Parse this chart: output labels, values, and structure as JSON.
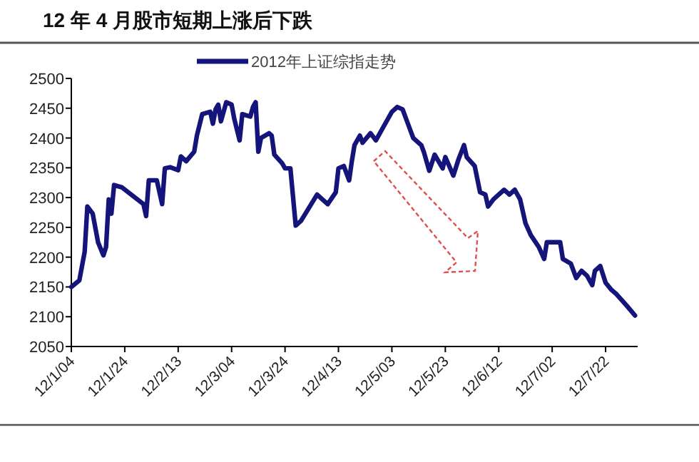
{
  "chart_data": {
    "type": "line",
    "title": "12 年 4 月股市短期上涨后下跌",
    "legend": "top",
    "xlim": [
      "2012-01-04",
      "2012-08-03"
    ],
    "xticks": [
      {
        "value": "2012-01-04",
        "label": "12/1/04"
      },
      {
        "value": "2012-01-24",
        "label": "12/1/24"
      },
      {
        "value": "2012-02-13",
        "label": "12/2/13"
      },
      {
        "value": "2012-03-04",
        "label": "12/3/04"
      },
      {
        "value": "2012-03-24",
        "label": "12/3/24"
      },
      {
        "value": "2012-04-13",
        "label": "12/4/13"
      },
      {
        "value": "2012-05-03",
        "label": "12/5/03"
      },
      {
        "value": "2012-05-23",
        "label": "12/5/23"
      },
      {
        "value": "2012-06-12",
        "label": "12/6/12"
      },
      {
        "value": "2012-07-02",
        "label": "12/7/02"
      },
      {
        "value": "2012-07-22",
        "label": "12/7/22"
      }
    ],
    "ylim": [
      2050,
      2500
    ],
    "yticks": [
      2050,
      2100,
      2150,
      2200,
      2250,
      2300,
      2350,
      2400,
      2450,
      2500
    ],
    "series": [
      {
        "name": "2012年上证综指走势",
        "color": "#14147a",
        "x": [
          "2012-01-04",
          "2012-01-07",
          "2012-01-09",
          "2012-01-10",
          "2012-01-12",
          "2012-01-14",
          "2012-01-16",
          "2012-01-17",
          "2012-01-18",
          "2012-01-19",
          "2012-01-20",
          "2012-01-23",
          "2012-01-31",
          "2012-02-01",
          "2012-02-02",
          "2012-02-05",
          "2012-02-07",
          "2012-02-08",
          "2012-02-10",
          "2012-02-13",
          "2012-02-14",
          "2012-02-16",
          "2012-02-19",
          "2012-02-20",
          "2012-02-22",
          "2012-02-25",
          "2012-02-26",
          "2012-02-27",
          "2012-02-28",
          "2012-02-29",
          "2012-03-02",
          "2012-03-04",
          "2012-03-05",
          "2012-03-07",
          "2012-03-08",
          "2012-03-11",
          "2012-03-12",
          "2012-03-13",
          "2012-03-14",
          "2012-03-15",
          "2012-03-18",
          "2012-03-19",
          "2012-03-20",
          "2012-03-23",
          "2012-03-24",
          "2012-03-26",
          "2012-03-28",
          "2012-03-30",
          "2012-04-05",
          "2012-04-06",
          "2012-04-09",
          "2012-04-12",
          "2012-04-13",
          "2012-04-15",
          "2012-04-17",
          "2012-04-18",
          "2012-04-19",
          "2012-04-21",
          "2012-04-22",
          "2012-04-25",
          "2012-04-27",
          "2012-04-29",
          "2012-05-03",
          "2012-05-05",
          "2012-05-07",
          "2012-05-09",
          "2012-05-11",
          "2012-05-14",
          "2012-05-15",
          "2012-05-17",
          "2012-05-19",
          "2012-05-22",
          "2012-05-23",
          "2012-05-26",
          "2012-05-28",
          "2012-05-30",
          "2012-05-31",
          "2012-06-03",
          "2012-06-05",
          "2012-06-07",
          "2012-06-08",
          "2012-06-10",
          "2012-06-12",
          "2012-06-14",
          "2012-06-16",
          "2012-06-18",
          "2012-06-20",
          "2012-06-22",
          "2012-06-24",
          "2012-06-27",
          "2012-06-29",
          "2012-06-30",
          "2012-07-02",
          "2012-07-05",
          "2012-07-06",
          "2012-07-09",
          "2012-07-11",
          "2012-07-13",
          "2012-07-15",
          "2012-07-17",
          "2012-07-18",
          "2012-07-20",
          "2012-07-22",
          "2012-07-24",
          "2012-07-26",
          "2012-07-30",
          "2012-08-02"
        ],
        "values": [
          2150,
          2161,
          2209,
          2285,
          2273,
          2225,
          2203,
          2217,
          2297,
          2273,
          2321,
          2317,
          2289,
          2269,
          2329,
          2329,
          2289,
          2349,
          2351,
          2346,
          2369,
          2361,
          2377,
          2404,
          2440,
          2444,
          2424,
          2448,
          2456,
          2428,
          2460,
          2456,
          2432,
          2396,
          2440,
          2436,
          2452,
          2460,
          2377,
          2400,
          2408,
          2404,
          2372,
          2357,
          2349,
          2349,
          2253,
          2261,
          2305,
          2301,
          2289,
          2309,
          2349,
          2353,
          2329,
          2361,
          2388,
          2404,
          2392,
          2408,
          2396,
          2412,
          2444,
          2452,
          2448,
          2424,
          2400,
          2388,
          2376,
          2345,
          2372,
          2349,
          2368,
          2337,
          2365,
          2388,
          2368,
          2353,
          2309,
          2305,
          2285,
          2297,
          2305,
          2313,
          2305,
          2313,
          2297,
          2257,
          2237,
          2217,
          2197,
          2225,
          2225,
          2225,
          2197,
          2189,
          2165,
          2177,
          2169,
          2153,
          2177,
          2185,
          2157,
          2146,
          2138,
          2118,
          2102
        ]
      }
    ]
  }
}
